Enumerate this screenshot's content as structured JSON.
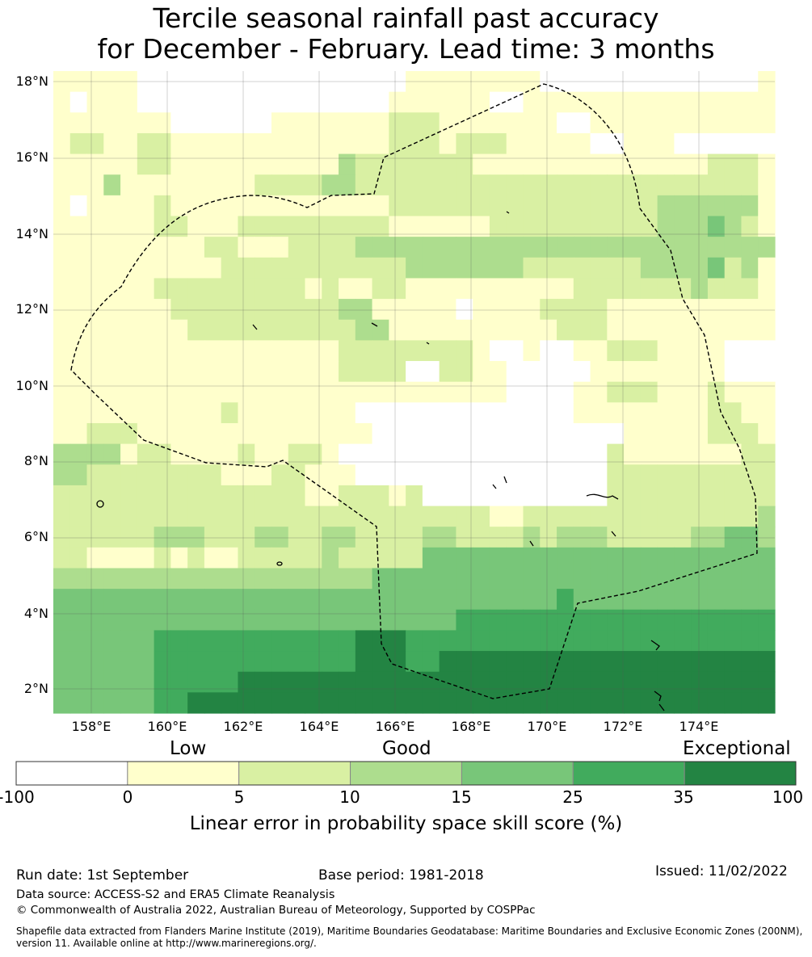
{
  "title_line1": "Tercile seasonal rainfall past accuracy",
  "title_line2": "for December - February. Lead time: 3 months",
  "map": {
    "lat_labels": [
      "18°N",
      "16°N",
      "14°N",
      "12°N",
      "10°N",
      "8°N",
      "6°N",
      "4°N",
      "2°N"
    ],
    "lon_labels": [
      "158°E",
      "160°E",
      "162°E",
      "164°E",
      "166°E",
      "168°E",
      "170°E",
      "172°E",
      "174°E"
    ],
    "boundary": "eez-outline"
  },
  "colorbar": {
    "heading_low": "Low",
    "heading_good": "Good",
    "heading_exceptional": "Exceptional",
    "ticks": [
      "-100",
      "0",
      "5",
      "10",
      "15",
      "25",
      "35",
      "100"
    ],
    "colors": [
      "#ffffff",
      "#ffffcc",
      "#d9f0a3",
      "#addd8e",
      "#78c679",
      "#41ab5d",
      "#238443"
    ],
    "label": "Linear error in probability space skill score (%)"
  },
  "footer": {
    "run_date": "Run date: 1st September",
    "base_period": "Base period: 1981-2018",
    "issued": "Issued: 11/02/2022",
    "data_source": "Data source: ACCESS-S2 and ERA5 Climate Reanalysis",
    "copyright": "© Commonwealth of Australia 2022, Australian Bureau of Meteorology, Supported by COSPPac",
    "shapefile_line1": "Shapefile data extracted from Flanders Marine Institute (2019), Maritime Boundaries Geodatabase: Maritime Boundaries and Exclusive Economic Zones (200NM),",
    "shapefile_line2": "version 11. Available online at http://www.marineregions.org/."
  }
}
